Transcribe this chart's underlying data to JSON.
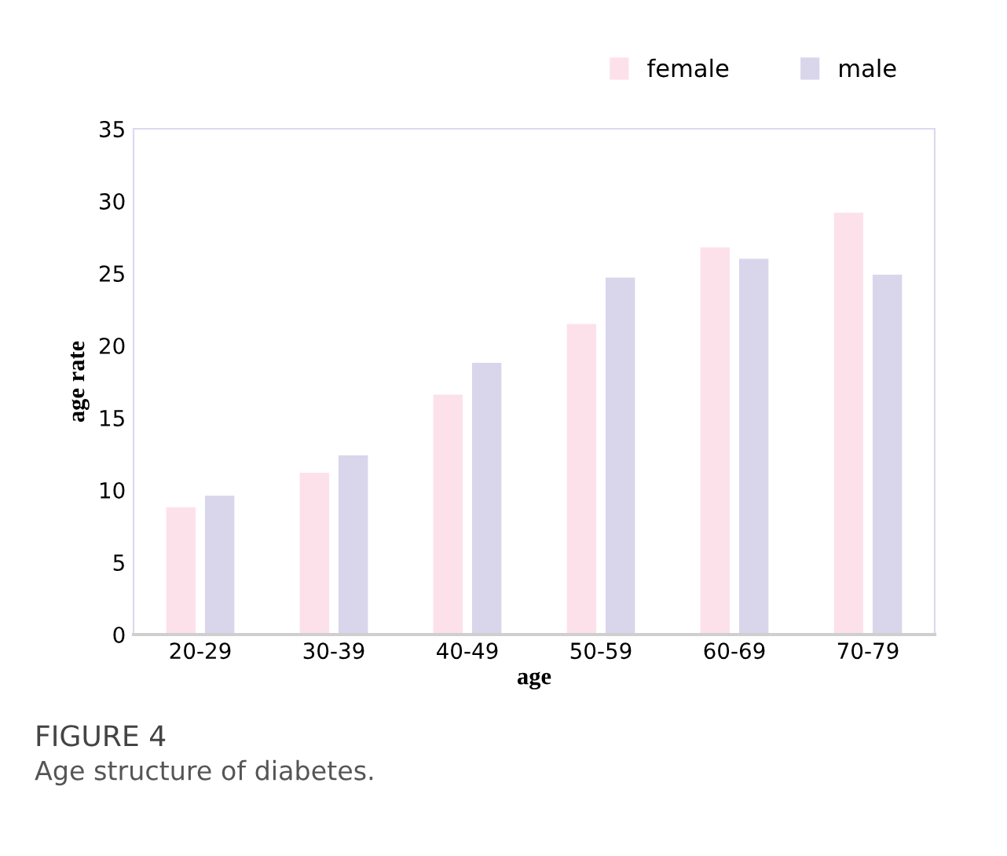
{
  "chart_data": {
    "type": "bar",
    "xlabel": "age",
    "ylabel": "age rate",
    "categories": [
      "20-29",
      "30-39",
      "40-49",
      "50-59",
      "60-69",
      "70-79"
    ],
    "series": [
      {
        "name": "female",
        "color": "#fde1ea",
        "values": [
          8.8,
          11.2,
          16.6,
          21.5,
          26.8,
          29.2
        ]
      },
      {
        "name": "male",
        "color": "#d9d5eb",
        "values": [
          9.6,
          12.4,
          18.8,
          24.7,
          26.0,
          24.9
        ]
      }
    ],
    "ylim": [
      0,
      35
    ],
    "yticks": [
      0,
      5,
      10,
      15,
      20,
      25,
      30,
      35
    ],
    "grid": false,
    "legend": "top right",
    "annotations": [
      "FIGURE 4",
      "Age structure of diabetes."
    ]
  }
}
